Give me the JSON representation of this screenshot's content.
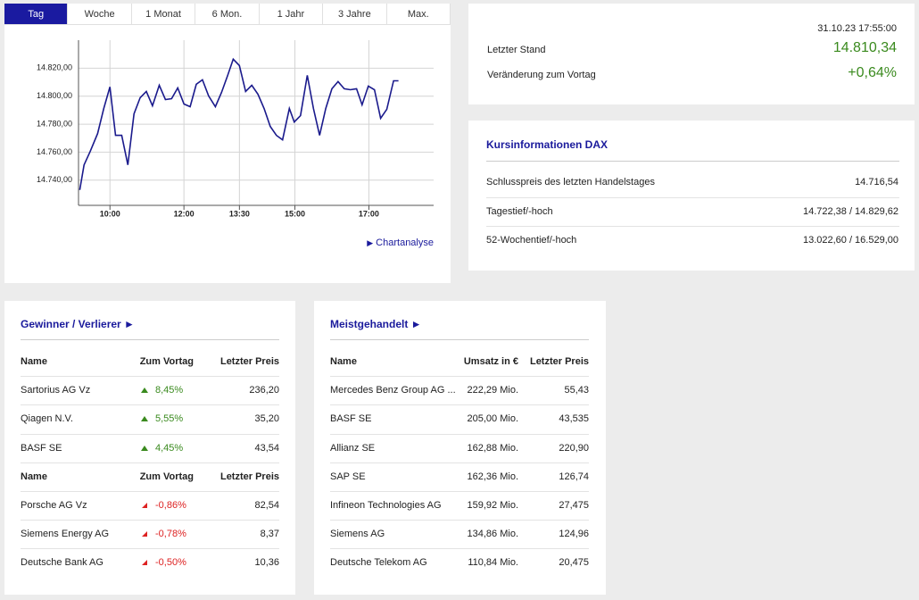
{
  "tabs": [
    "Tag",
    "Woche",
    "1 Monat",
    "6 Mon.",
    "1 Jahr",
    "3 Jahre",
    "Max."
  ],
  "active_tab": 0,
  "chart_data": {
    "type": "line",
    "color": "#1a1a8c",
    "grid": true,
    "x": [
      551,
      558,
      568,
      580,
      590,
      600,
      609,
      619,
      629,
      639,
      649,
      659,
      669,
      680,
      690,
      700,
      710,
      720,
      730,
      740,
      750,
      760,
      771,
      781,
      791,
      800,
      810,
      820,
      830,
      840,
      850,
      860,
      870,
      880,
      891,
      899,
      909,
      920,
      930,
      940,
      950,
      960,
      970,
      980,
      990,
      1000,
      1009,
      1019,
      1029,
      1039,
      1049,
      1060,
      1068
    ],
    "values": [
      14733.0,
      14750.9,
      14760.5,
      14773.3,
      14791.2,
      14806.6,
      14772.0,
      14772.0,
      14750.9,
      14787.4,
      14798.9,
      14803.4,
      14793.1,
      14807.8,
      14797.6,
      14798.2,
      14805.9,
      14794.4,
      14792.5,
      14808.5,
      14811.7,
      14800.2,
      14792.5,
      14802.7,
      14814.9,
      14826.4,
      14821.9,
      14803.4,
      14807.8,
      14801.4,
      14791.2,
      14778.4,
      14772.0,
      14768.8,
      14791.2,
      14781.6,
      14786.1,
      14814.9,
      14791.2,
      14772.0,
      14791.2,
      14805.3,
      14810.4,
      14805.3,
      14804.6,
      14805.3,
      14793.8,
      14807.2,
      14804.6,
      14784.2,
      14790.6,
      14811.0,
      14811.0
    ],
    "xlim": [
      549,
      1125
    ],
    "ylim": [
      14722,
      14840
    ],
    "xticks": [
      {
        "value": 600,
        "label": "10:00"
      },
      {
        "value": 720,
        "label": "12:00"
      },
      {
        "value": 810,
        "label": "13:30"
      },
      {
        "value": 900,
        "label": "15:00"
      },
      {
        "value": 1020,
        "label": "17:00"
      }
    ],
    "yticks": [
      {
        "value": 14740,
        "label": "14.740,00"
      },
      {
        "value": 14760,
        "label": "14.760,00"
      },
      {
        "value": 14780,
        "label": "14.780,00"
      },
      {
        "value": 14800,
        "label": "14.800,00"
      },
      {
        "value": 14820,
        "label": "14.820,00"
      }
    ]
  },
  "chart_link": "Chartanalyse",
  "quote": {
    "date": "31.10.23 17:55:00",
    "rows": [
      [
        "Letzter Stand",
        "14.810,34"
      ],
      [
        "Veränderung zum Vortag",
        "+0,64%"
      ]
    ]
  },
  "info": {
    "title": "Kursinformationen DAX",
    "rows": [
      [
        "Schlusspreis des letzten Handelstages",
        "14.716,54"
      ],
      [
        "Tagestief/-hoch",
        "14.722,38 / 14.829,62"
      ],
      [
        "52-Wochentief/-hoch",
        "13.022,60 / 16.529,00"
      ]
    ]
  },
  "movers": {
    "title": "Gewinner / Verlierer ►",
    "gainers": {
      "header": [
        "Name",
        "Zum Vortag",
        "Letzter Preis"
      ],
      "rows": [
        [
          "Sartorius AG Vz",
          "8,45%",
          "236,20"
        ],
        [
          "Qiagen N.V.",
          "5,55%",
          "35,20"
        ],
        [
          "BASF SE",
          "4,45%",
          "43,54"
        ]
      ]
    },
    "losers": {
      "header": [
        "Name",
        "Zum Vortag",
        "Letzter Preis"
      ],
      "rows": [
        [
          "Porsche AG Vz",
          "-0,86%",
          "82,54"
        ],
        [
          "Siemens Energy AG",
          "-0,78%",
          "8,37"
        ],
        [
          "Deutsche Bank AG",
          "-0,50%",
          "10,36"
        ]
      ]
    }
  },
  "most_traded": {
    "title": "Meistgehandelt ►",
    "header": [
      "Name",
      "Umsatz in €",
      "Letzter Preis"
    ],
    "rows": [
      [
        "Mercedes Benz Group AG ...",
        "222,29 Mio.",
        "55,43"
      ],
      [
        "BASF SE",
        "205,00 Mio.",
        "43,535"
      ],
      [
        "Allianz SE",
        "162,88 Mio.",
        "220,90"
      ],
      [
        "SAP SE",
        "162,36 Mio.",
        "126,74"
      ],
      [
        "Infineon Technologies AG",
        "159,92 Mio.",
        "27,475"
      ],
      [
        "Siemens AG",
        "134,86 Mio.",
        "124,96"
      ],
      [
        "Deutsche Telekom AG",
        "110,84 Mio.",
        "20,475"
      ]
    ]
  }
}
